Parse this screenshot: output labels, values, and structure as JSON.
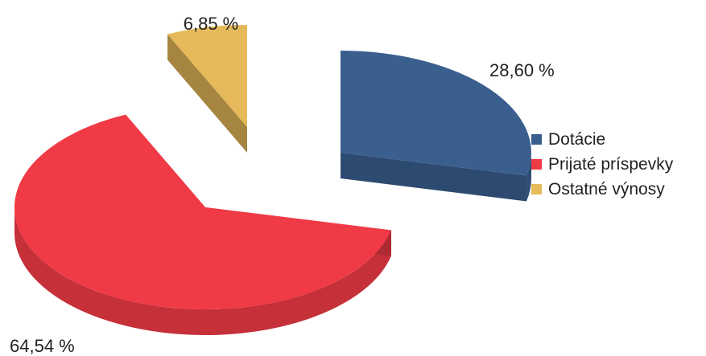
{
  "chart_data": {
    "type": "pie",
    "title": "",
    "categories": [
      "Dotácie",
      "Prijaté príspevky",
      "Ostatné výnosy"
    ],
    "values": [
      28.6,
      64.54,
      6.85
    ],
    "value_labels": [
      "28,60 %",
      "64,54 %",
      "6,85 %"
    ],
    "colors": [
      "#3a5f8f",
      "#f03a46",
      "#e6b95a"
    ],
    "legend_position": "right",
    "style": "3d-exploded"
  }
}
